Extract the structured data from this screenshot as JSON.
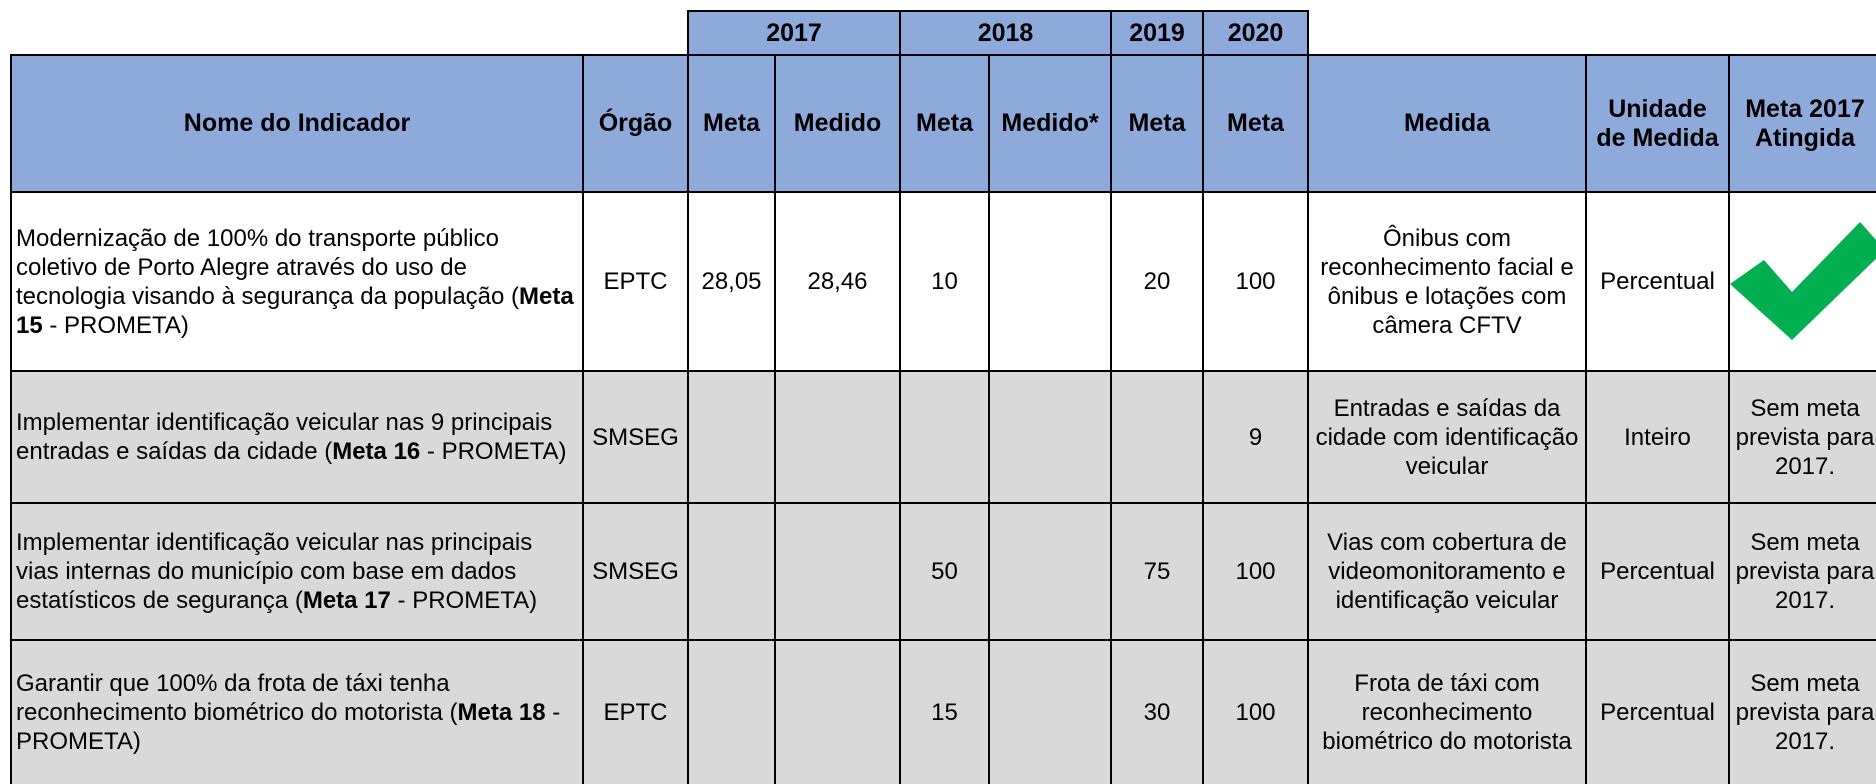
{
  "years": [
    "2017",
    "2018",
    "2019",
    "2020"
  ],
  "header": [
    "Nome do Indicador",
    "Órgão",
    "Meta",
    "Medido",
    "Meta",
    "Medido*",
    "Meta",
    "Meta",
    "Medida",
    "Unidade de Medida",
    "Meta 2017 Atingida"
  ],
  "rows": [
    {
      "name": [
        "Modernização de 100% do transporte público coletivo de Porto Alegre através do uso de tecnologia visando à segurança da população (",
        "Meta 15",
        " - PROMETA)"
      ],
      "cells": [
        "EPTC",
        "28,05",
        "28,46",
        "10",
        null,
        "20",
        "100",
        "Ônibus com reconhecimento facial e ônibus e lotações com câmera CFTV",
        "Percentual",
        null
      ]
    },
    {
      "name": [
        "Implementar identificação veicular nas 9 principais entradas e saídas da cidade (",
        "Meta 16",
        " - PROMETA)"
      ],
      "cells": [
        "SMSEG",
        null,
        null,
        null,
        null,
        null,
        "9",
        "Entradas e saídas da cidade com identificação veicular",
        "Inteiro",
        "Sem meta prevista para 2017."
      ]
    },
    {
      "name": [
        "Implementar identificação veicular nas principais vias internas do município com base em dados estatísticos de segurança (",
        "Meta 17",
        " - PROMETA)"
      ],
      "cells": [
        "SMSEG",
        null,
        null,
        "50",
        null,
        "75",
        "100",
        "Vias com cobertura de videomonitoramento e identificação veicular",
        "Percentual",
        "Sem meta prevista para 2017."
      ]
    },
    {
      "name": [
        "Garantir que 100% da frota de táxi tenha reconhecimento biométrico do motorista (",
        "Meta 18",
        " - PROMETA)"
      ],
      "cells": [
        "EPTC",
        null,
        null,
        "15",
        null,
        "30",
        "100",
        "Frota de táxi com reconhecimento biométrico do motorista",
        "Percentual",
        "Sem meta prevista para 2017."
      ]
    }
  ]
}
